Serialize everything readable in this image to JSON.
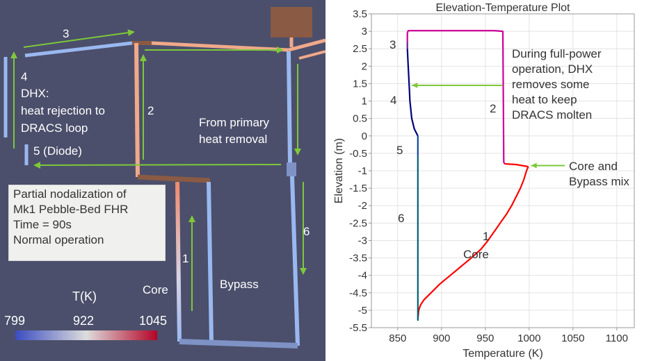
{
  "nodalization": {
    "labels": {
      "seg3": "3",
      "seg4": "4",
      "dhx_title": "DHX:",
      "dhx_line1": "heat rejection to",
      "dhx_line2": "DRACS loop",
      "seg2": "2",
      "diode": "5 (Diode)",
      "primary_line1": "From primary",
      "primary_line2": "heat removal",
      "seg6": "6",
      "seg1": "1",
      "core": "Core",
      "bypass": "Bypass"
    },
    "info_box": [
      "Partial nodalization of",
      "Mk1 Pebble-Bed FHR",
      "Time = 90s",
      "Normal operation"
    ],
    "colorbar": {
      "title": "T(K)",
      "min_label": "799",
      "mid_label": "922",
      "max_label": "1045",
      "min": 799,
      "max": 1045,
      "colors": [
        "#3b4cc0",
        "#dddddd",
        "#b40426"
      ]
    },
    "colors": {
      "background": "#4b4f6b",
      "arrow": "#7ec83a",
      "cold_pipe": "#9ab8f0",
      "mid_pipe": "#f0a98a",
      "hot_pipe": "#8a5a44",
      "diode_pipe": "#7f92c6"
    }
  },
  "chart_data": {
    "type": "line",
    "title": "Elevation-Temperature Plot",
    "xlabel": "Temperature (K)",
    "ylabel": "Elevation (m)",
    "xlim": [
      820,
      1120
    ],
    "ylim": [
      -5.5,
      3.5
    ],
    "xticks": [
      850,
      900,
      950,
      1000,
      1050,
      1100
    ],
    "yticks": [
      3.5,
      3,
      2.5,
      2,
      1.5,
      1,
      0.5,
      0,
      -0.5,
      -1,
      -1.5,
      -2,
      -2.5,
      -3,
      -3.5,
      -4,
      -4.5,
      -5,
      -5.5
    ],
    "grid": true,
    "series": [
      {
        "label": "1",
        "color": "#ff0000",
        "points": [
          [
            873,
            -5.25
          ],
          [
            874,
            -5.0
          ],
          [
            876,
            -4.85
          ],
          [
            880,
            -4.7
          ],
          [
            888,
            -4.5
          ],
          [
            898,
            -4.25
          ],
          [
            910,
            -4.0
          ],
          [
            922,
            -3.75
          ],
          [
            934,
            -3.5
          ],
          [
            945,
            -3.25
          ],
          [
            953,
            -3.0
          ],
          [
            960,
            -2.75
          ],
          [
            967,
            -2.5
          ],
          [
            974,
            -2.25
          ],
          [
            980,
            -2.0
          ],
          [
            985,
            -1.75
          ],
          [
            990,
            -1.5
          ],
          [
            994,
            -1.25
          ],
          [
            997,
            -1.0
          ],
          [
            999,
            -0.88
          ]
        ]
      },
      {
        "label": "mix",
        "color": "#ff0000",
        "points": [
          [
            999,
            -0.88
          ],
          [
            985,
            -0.82
          ],
          [
            972,
            -0.8
          ]
        ]
      },
      {
        "label": "2",
        "color": "#cc0099",
        "points": [
          [
            972,
            -0.8
          ],
          [
            971,
            -0.75
          ],
          [
            970,
            3.0
          ],
          [
            960,
            3.02
          ],
          [
            862,
            3.02
          ],
          [
            861,
            2.95
          ],
          [
            861,
            2.7
          ]
        ]
      },
      {
        "label": "3",
        "color": "#6a1b9a",
        "points": [
          [
            861,
            2.7
          ],
          [
            861,
            2.5
          ]
        ]
      },
      {
        "label": "4",
        "color": "#00007f",
        "points": [
          [
            861,
            2.5
          ],
          [
            862,
            2.0
          ],
          [
            863,
            1.5
          ],
          [
            864,
            1.0
          ],
          [
            866,
            0.5
          ],
          [
            869,
            0.2
          ],
          [
            873,
            0.0
          ]
        ]
      },
      {
        "label": "5",
        "color": "#0d47a1",
        "points": [
          [
            873,
            0.0
          ],
          [
            873,
            -0.6
          ]
        ]
      },
      {
        "label": "6",
        "color": "#005f73",
        "points": [
          [
            873,
            -0.6
          ],
          [
            873,
            -2.5
          ],
          [
            873,
            -5.3
          ]
        ]
      }
    ],
    "segment_labels": [
      "3",
      "4",
      "5",
      "6",
      "1",
      "Core",
      "2"
    ],
    "annotations": {
      "dhx_note": [
        "During full-power",
        "operation, DHX",
        "removes some",
        "heat to keep",
        "DRACS molten"
      ],
      "mix_note": [
        "Core and",
        "Bypass mix"
      ]
    }
  }
}
